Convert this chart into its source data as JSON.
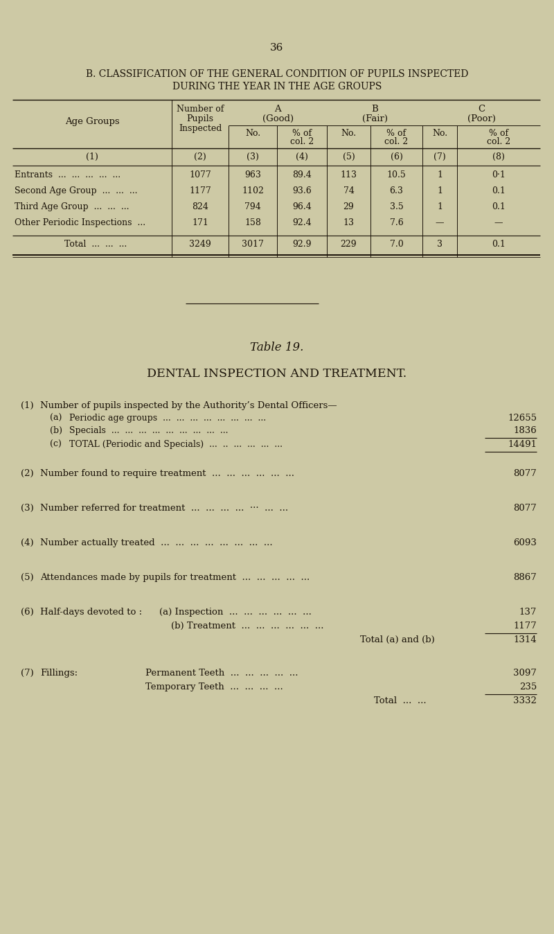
{
  "bg_color": "#cdc9a5",
  "text_color": "#1a1208",
  "page_number": "36",
  "title_b1": "B. CLASSIFICATION OF THE GENERAL CONDITION OF PUPILS INSPECTED",
  "title_b2": "DURING THE YEAR IN THE AGE GROUPS",
  "table_rows": [
    [
      "Entrants  ...  ...  ...  ...  ...",
      "1077",
      "963",
      "89.4",
      "113",
      "10.5",
      "1",
      "0·1"
    ],
    [
      "Second Age Group  ...  ...  ...",
      "1177",
      "1102",
      "93.6",
      "74",
      "6.3",
      "1",
      "0.1"
    ],
    [
      "Third Age Group  ...  ...  ...",
      "824",
      "794",
      "96.4",
      "29",
      "3.5",
      "1",
      "0.1"
    ],
    [
      "Other Periodic Inspections  ...",
      "171",
      "158",
      "92.4",
      "13",
      "7.6",
      "—",
      "—"
    ]
  ],
  "table_total": [
    "Total  ...  ...  ...",
    "3249",
    "3017",
    "92.9",
    "229",
    "7.0",
    "3",
    "0.1"
  ],
  "table19_title": "Table 19.",
  "table19_heading": "DENTAL INSPECTION AND TREATMENT.",
  "dental": [
    {
      "num": "(1)",
      "text": "Number of pupils inspected by the Authority’s Dental Officers—",
      "value": null,
      "sub": [
        {
          "letter": "(a)",
          "text": "Periodic age groups  ...  ...  ...  ...  ...  ...  ...  ...",
          "value": "12655"
        },
        {
          "letter": "(b)",
          "text": "Specials  ...  ...  ...  ...  ...  ...  ...  ...  ...",
          "value": "1836"
        },
        {
          "letter": "(c)",
          "text": "TOTAL (Periodic and Specials)  ...  ..  ...  ...  ...  ...",
          "value": "14491",
          "line_after": true
        }
      ]
    },
    {
      "num": "(2)",
      "text": "Number found to require treatment  ...  ...  ...  ...  ...  ...",
      "value": "8077"
    },
    {
      "num": "(3)",
      "text": "Number referred for treatment  ...  ...  ...  ...  ···  ...  ...",
      "value": "8077"
    },
    {
      "num": "(4)",
      "text": "Number actually treated  ...  ...  ...  ...  ...  ...  ...  ...",
      "value": "6093"
    },
    {
      "num": "(5)",
      "text": "Attendances made by pupils for treatment  ...  ...  ...  ...  ...",
      "value": "8867"
    },
    {
      "num": "(6)",
      "text": "Half-days devoted to :",
      "value": null,
      "sub": [
        {
          "letter": "(a)",
          "indent": 230,
          "text": "Inspection  ...  ...  ...  ...  ...  ...",
          "value": "137"
        },
        {
          "letter": "(b)",
          "indent": 247,
          "text": "Treatment  ...  ...  ...  ...  ...  ...",
          "value": "1177"
        },
        {
          "letter": null,
          "indent": 520,
          "text": "Total (a) and (b)",
          "value": "1314",
          "line_before": true
        }
      ]
    },
    {
      "num": "(7)",
      "text": "Fillings:",
      "value": null,
      "sub": [
        {
          "letter": null,
          "indent": 210,
          "text": "Permanent Teeth  ...  ...  ...  ...  ...",
          "value": "3097"
        },
        {
          "letter": null,
          "indent": 210,
          "text": "Temporary Teeth  ...  ...  ...  ...",
          "value": "235"
        },
        {
          "letter": null,
          "indent": 540,
          "text": "Total  ...  ...",
          "value": "3332",
          "line_before": true
        }
      ]
    }
  ]
}
